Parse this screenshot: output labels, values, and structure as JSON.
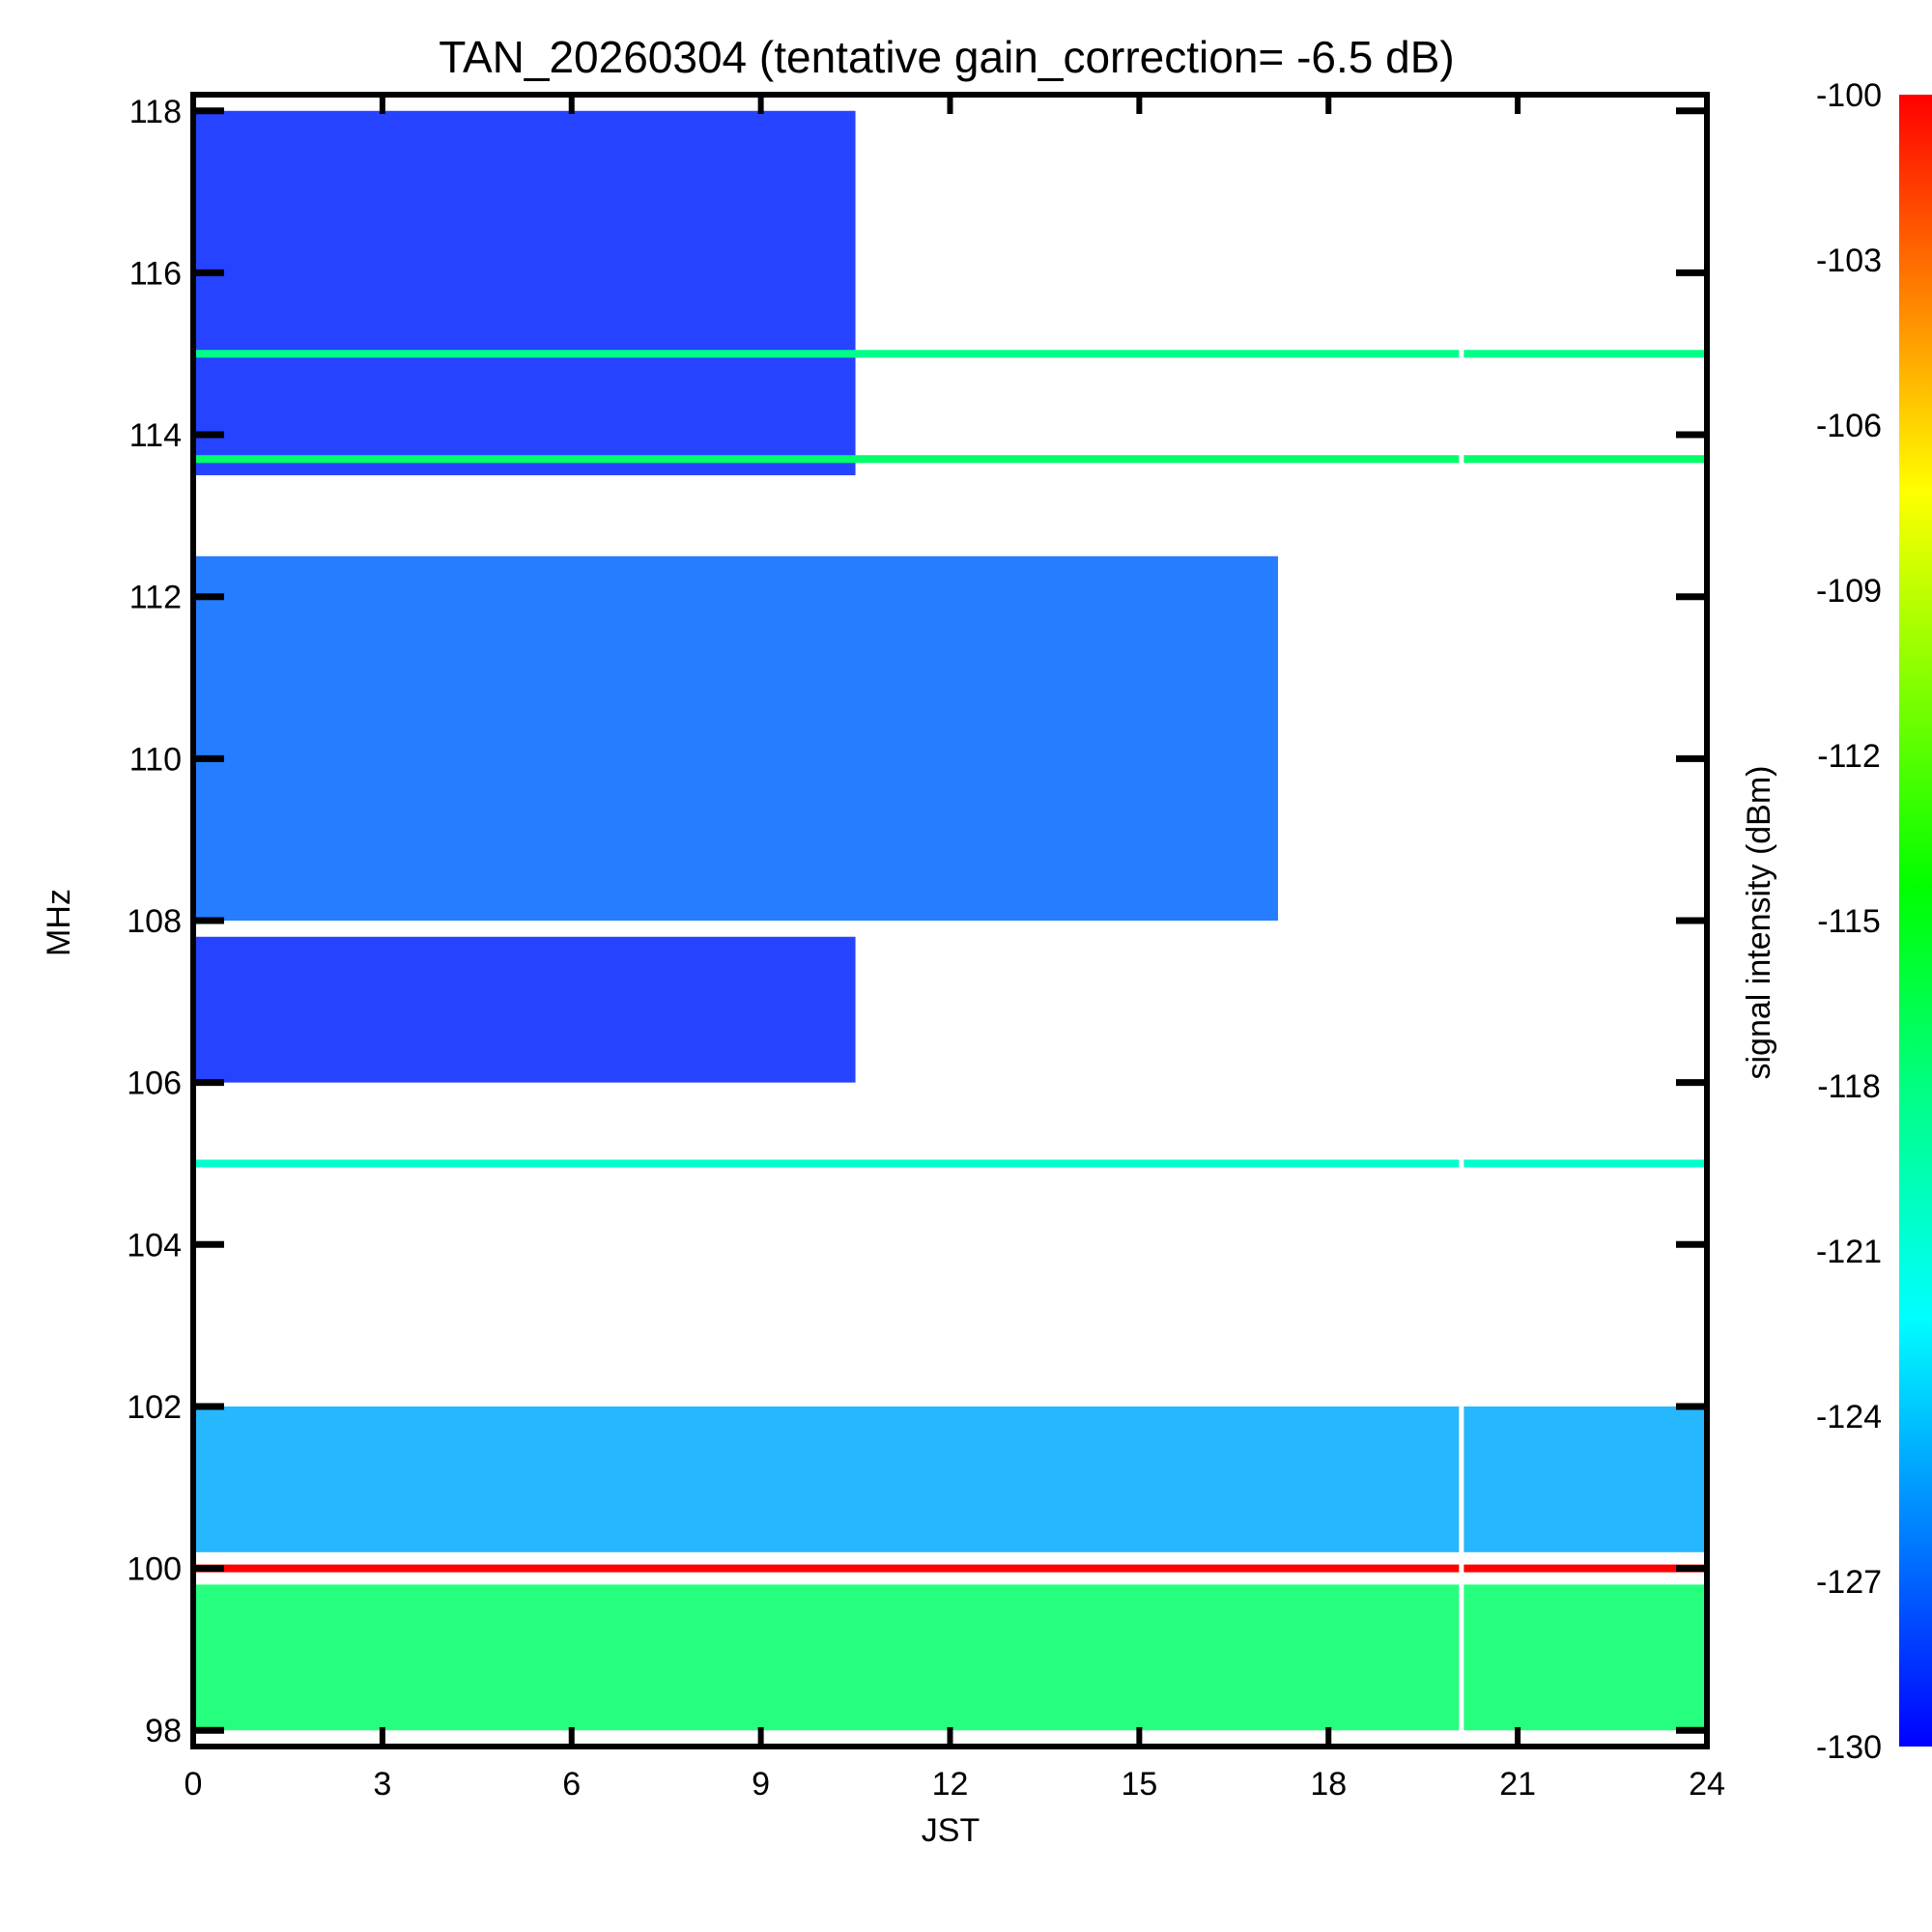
{
  "chart_data": {
    "type": "heatmap",
    "title": "TAN_20260304 (tentative gain_correction= -6.5 dB)",
    "xlabel": "JST",
    "ylabel": "MHz",
    "colorbar_label": "signal intensity (dBm)",
    "xlim": [
      0,
      24
    ],
    "ylim": [
      97.8,
      118.2
    ],
    "x_ticks": [
      0,
      3,
      6,
      9,
      12,
      15,
      18,
      21,
      24
    ],
    "y_ticks": [
      98,
      100,
      102,
      104,
      106,
      108,
      110,
      112,
      114,
      116,
      118
    ],
    "colorbar_range": [
      -130,
      -100
    ],
    "colorbar_ticks": [
      -100,
      -103,
      -106,
      -109,
      -112,
      -115,
      -118,
      -121,
      -124,
      -127,
      -130
    ],
    "colormap": [
      "#0000ff",
      "#0080ff",
      "#00ffff",
      "#00ff80",
      "#00ff00",
      "#80ff00",
      "#ffff00",
      "#ff8000",
      "#ff0000"
    ],
    "background_color": "#ffffff",
    "strong_lines_mhz": [
      {
        "freq": 115.0,
        "level_dbm": -119
      },
      {
        "freq": 113.7,
        "level_dbm": -118
      },
      {
        "freq": 105.0,
        "level_dbm": -121
      },
      {
        "freq": 100.0,
        "level_dbm": -100
      }
    ],
    "regions": [
      {
        "label": "dense band 108-112 MHz",
        "x": [
          0,
          17.2
        ],
        "y": [
          108.0,
          112.5
        ],
        "level_dbm": -127
      },
      {
        "label": "high band 112-118 MHz",
        "x": [
          0,
          10.5
        ],
        "y": [
          113.5,
          118.0
        ],
        "level_dbm": -129
      },
      {
        "label": "band 106-108 MHz",
        "x": [
          0,
          10.5
        ],
        "y": [
          106.0,
          107.8
        ],
        "level_dbm": -129
      },
      {
        "label": "band 98-100 MHz",
        "x": [
          0,
          24
        ],
        "y": [
          98.0,
          99.8
        ],
        "level_dbm": -118
      },
      {
        "label": "band 100-102 MHz",
        "x": [
          0,
          24
        ],
        "y": [
          100.2,
          102.0
        ],
        "level_dbm": -125
      }
    ],
    "data_gap_jst": 20.1
  }
}
